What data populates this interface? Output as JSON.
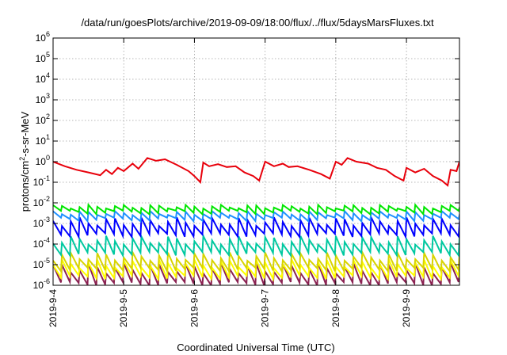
{
  "chart_data": {
    "type": "line",
    "title": "/data/run/goesPlots/archive/2019-09-09/18:00/flux/../flux/5daysMarsFluxes.txt",
    "xlabel": "Coordinated Universal Time (UTC)",
    "ylabel_parts": {
      "base": "protons/cm",
      "sup": "2",
      "rest": "-s-sr-MeV"
    },
    "x_scale": "time",
    "y_scale": "log",
    "xlim": [
      "2019-09-04T00:00",
      "2019-09-09T18:00"
    ],
    "ylim": [
      1e-06,
      1000000.0
    ],
    "grid": true,
    "x_ticks": [
      {
        "value": "2019-09-04T00:00",
        "label": "2019-9-4"
      },
      {
        "value": "2019-09-05T00:00",
        "label": "2019-9-5"
      },
      {
        "value": "2019-09-06T00:00",
        "label": "2019-9-6"
      },
      {
        "value": "2019-09-07T00:00",
        "label": "2019-9-7"
      },
      {
        "value": "2019-09-08T00:00",
        "label": "2019-9-8"
      },
      {
        "value": "2019-09-09T00:00",
        "label": "2019-9-9"
      }
    ],
    "y_ticks": [
      {
        "exp": -6,
        "base": "10",
        "sup": "-6"
      },
      {
        "exp": -5,
        "base": "10",
        "sup": "-5"
      },
      {
        "exp": -4,
        "base": "10",
        "sup": "-4"
      },
      {
        "exp": -3,
        "base": "10",
        "sup": "-3"
      },
      {
        "exp": -2,
        "base": "10",
        "sup": "-2"
      },
      {
        "exp": -1,
        "base": "10",
        "sup": "-1"
      },
      {
        "exp": 0,
        "base": "10",
        "sup": "0"
      },
      {
        "exp": 1,
        "base": "10",
        "sup": "1"
      },
      {
        "exp": 2,
        "base": "10",
        "sup": "2"
      },
      {
        "exp": 3,
        "base": "10",
        "sup": "3"
      },
      {
        "exp": 4,
        "base": "10",
        "sup": "4"
      },
      {
        "exp": 5,
        "base": "10",
        "sup": "5"
      },
      {
        "exp": 6,
        "base": "10",
        "sup": "6"
      }
    ],
    "series": [
      {
        "color": "#e8000b",
        "values": [
          [
            "2019-09-04T00:00",
            1.0
          ],
          [
            "2019-09-04T04:00",
            0.6
          ],
          [
            "2019-09-04T08:00",
            0.4
          ],
          [
            "2019-09-04T12:00",
            0.3
          ],
          [
            "2019-09-04T16:00",
            0.22
          ],
          [
            "2019-09-04T18:00",
            0.4
          ],
          [
            "2019-09-04T20:00",
            0.25
          ],
          [
            "2019-09-04T22:00",
            0.5
          ],
          [
            "2019-09-05T00:00",
            0.35
          ],
          [
            "2019-09-05T03:00",
            0.8
          ],
          [
            "2019-09-05T05:00",
            0.45
          ],
          [
            "2019-09-05T08:00",
            1.5
          ],
          [
            "2019-09-05T11:00",
            1.1
          ],
          [
            "2019-09-05T14:00",
            1.3
          ],
          [
            "2019-09-05T18:00",
            0.7
          ],
          [
            "2019-09-05T22:00",
            0.35
          ],
          [
            "2019-09-06T00:00",
            0.2
          ],
          [
            "2019-09-06T02:00",
            0.1
          ],
          [
            "2019-09-06T03:00",
            0.9
          ],
          [
            "2019-09-06T05:00",
            0.6
          ],
          [
            "2019-09-06T08:00",
            0.75
          ],
          [
            "2019-09-06T11:00",
            0.55
          ],
          [
            "2019-09-06T14:00",
            0.6
          ],
          [
            "2019-09-06T17:00",
            0.3
          ],
          [
            "2019-09-06T20:00",
            0.2
          ],
          [
            "2019-09-06T22:00",
            0.12
          ],
          [
            "2019-09-07T00:00",
            1.0
          ],
          [
            "2019-09-07T03:00",
            0.6
          ],
          [
            "2019-09-07T06:00",
            0.8
          ],
          [
            "2019-09-07T08:00",
            0.55
          ],
          [
            "2019-09-07T11:00",
            0.6
          ],
          [
            "2019-09-07T15:00",
            0.4
          ],
          [
            "2019-09-07T19:00",
            0.25
          ],
          [
            "2019-09-07T22:00",
            0.15
          ],
          [
            "2019-09-08T00:00",
            1.0
          ],
          [
            "2019-09-08T02:00",
            0.7
          ],
          [
            "2019-09-08T04:00",
            1.5
          ],
          [
            "2019-09-08T07:00",
            1.0
          ],
          [
            "2019-09-08T11:00",
            0.8
          ],
          [
            "2019-09-08T14:00",
            0.5
          ],
          [
            "2019-09-08T17:00",
            0.4
          ],
          [
            "2019-09-08T20:00",
            0.2
          ],
          [
            "2019-09-08T23:00",
            0.12
          ],
          [
            "2019-09-09T00:00",
            0.5
          ],
          [
            "2019-09-09T03:00",
            0.3
          ],
          [
            "2019-09-09T06:00",
            0.45
          ],
          [
            "2019-09-09T09:00",
            0.2
          ],
          [
            "2019-09-09T12:00",
            0.12
          ],
          [
            "2019-09-09T14:00",
            0.07
          ],
          [
            "2019-09-09T15:00",
            0.4
          ],
          [
            "2019-09-09T17:00",
            0.35
          ],
          [
            "2019-09-09T18:00",
            1.0
          ]
        ]
      },
      {
        "color": "#00e600",
        "low": 0.0035,
        "high": 0.008
      },
      {
        "color": "#1e90ff",
        "low": 0.0016,
        "high": 0.004
      },
      {
        "color": "#0000ff",
        "low": 0.00028,
        "high": 0.002
      },
      {
        "color": "#00c8a0",
        "low": 3.5e-05,
        "high": 0.00025
      },
      {
        "color": "#d8d400",
        "low": 6e-06,
        "high": 4e-05
      },
      {
        "color": "#ffff00",
        "low": 2.5e-06,
        "high": 1.8e-05
      },
      {
        "color": "#8b2252",
        "low": 1.2e-06,
        "high": 1.2e-05
      }
    ]
  }
}
